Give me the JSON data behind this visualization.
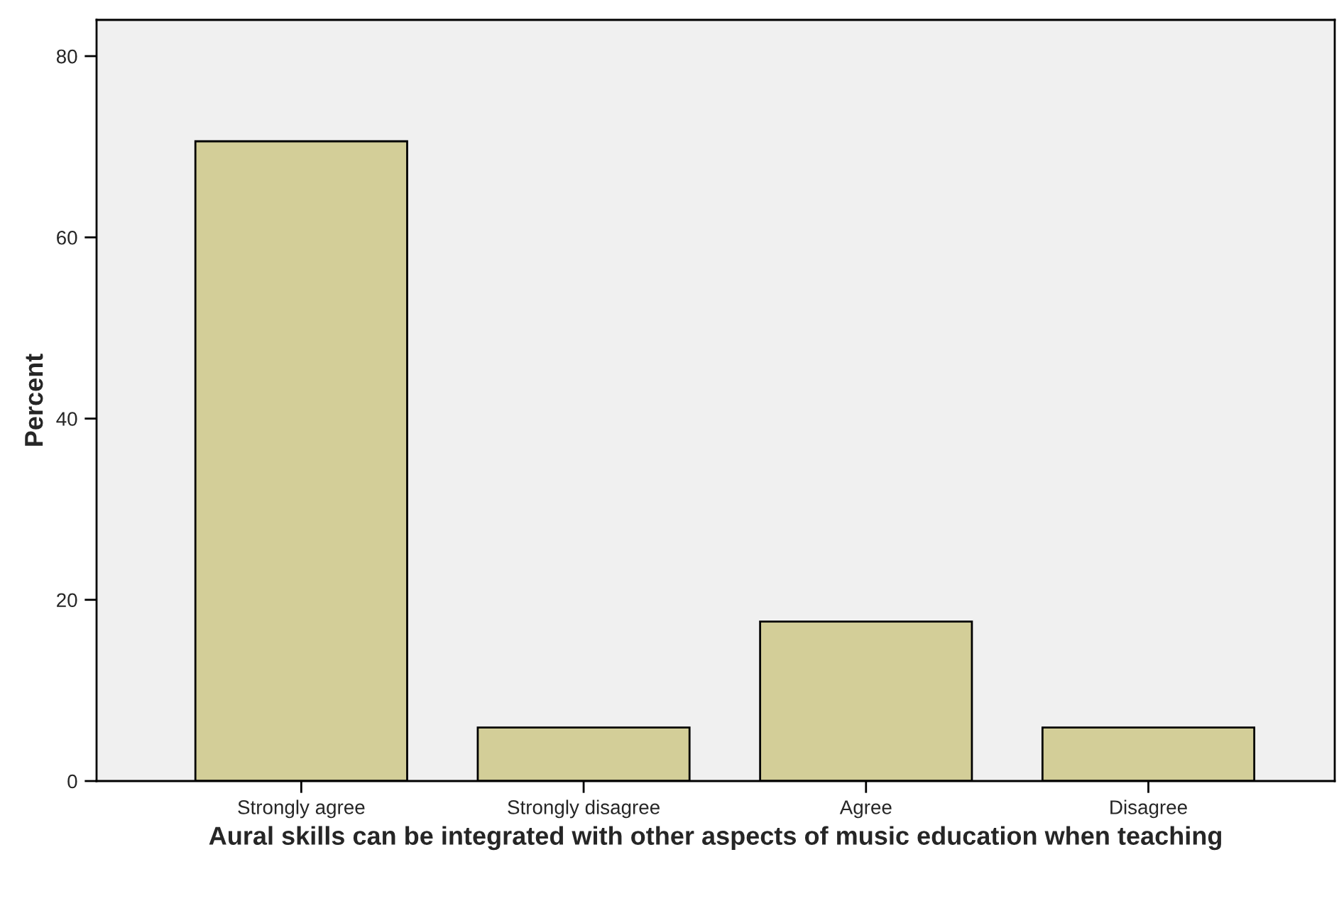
{
  "chart_data": {
    "type": "bar",
    "xlabel": "Aural skills can be integrated with other aspects of music education when teaching",
    "ylabel": "Percent",
    "categories": [
      "Strongly agree",
      "Strongly disagree",
      "Agree",
      "Disagree"
    ],
    "values": [
      70.6,
      5.9,
      17.6,
      5.9
    ],
    "color": "#d3ce98",
    "ylim": [
      0,
      84
    ],
    "yticks": [
      0,
      20,
      40,
      60,
      80
    ],
    "grid": false,
    "legend": false
  }
}
